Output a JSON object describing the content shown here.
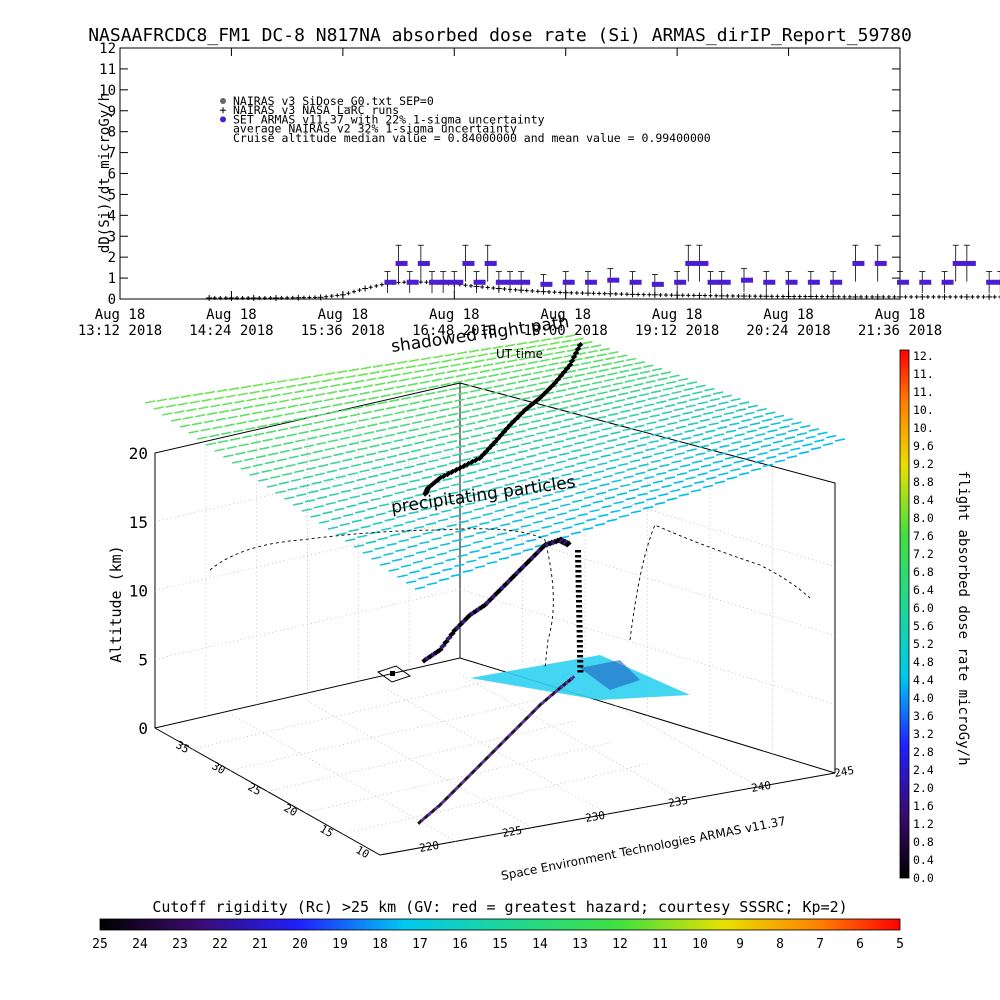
{
  "page": {
    "title": "NASAAFRCDC8_FM1 DC-8    N817NA absorbed dose rate (Si) ARMAS_dirIP_Report_59780",
    "credit": "Space Environment Technologies ARMAS v11.37"
  },
  "chart_data": [
    {
      "type": "scatter",
      "ylabel": "dD(Si)/dt microGy/h",
      "ylim": [
        0,
        12
      ],
      "y_ticks": [
        "0",
        "1",
        "2",
        "3",
        "4",
        "5",
        "6",
        "7",
        "8",
        "9",
        "10",
        "11",
        "12"
      ],
      "x_ticks": [
        {
          "line1": "Aug 18",
          "line2": "13:12 2018"
        },
        {
          "line1": "Aug 18",
          "line2": "14:24 2018"
        },
        {
          "line1": "Aug 18",
          "line2": "15:36 2018"
        },
        {
          "line1": "Aug 18",
          "line2": "16:48 2018"
        },
        {
          "line1": "Aug 18",
          "line2": "18:00 2018"
        },
        {
          "line1": "Aug 18",
          "line2": "19:12 2018"
        },
        {
          "line1": "Aug 18",
          "line2": "20:24 2018"
        },
        {
          "line1": "Aug 18",
          "line2": "21:36 2018"
        }
      ],
      "legend": [
        "NAIRAS v3 SiDose_G0.txt SEP=0",
        "NAIRAS v3 NASA LaRC runs",
        "SET ARMAS v11.37 with 22% 1-sigma uncertainty",
        "average NAIRAS v2 32% 1-sigma uncertainty",
        "Cruise altitude median value = 0.84000000 and mean value = 0.99400000"
      ],
      "series": [
        {
          "name": "NAIRAS v3 NASA LaRC runs",
          "color": "#000000",
          "x": [
            0.8,
            1.0,
            1.2,
            1.4,
            1.6,
            1.8,
            2.0,
            2.2,
            2.4,
            2.6,
            2.8,
            3.0,
            3.2,
            3.4,
            3.6,
            3.8,
            4.0,
            4.2,
            4.4,
            4.6,
            4.8,
            5.0,
            5.2,
            5.4,
            5.6,
            5.8,
            6.0,
            6.2,
            6.4,
            6.6,
            6.8,
            7.0,
            7.2,
            7.4,
            7.6,
            7.8,
            8.0
          ],
          "y": [
            0.05,
            0.05,
            0.05,
            0.05,
            0.06,
            0.08,
            0.2,
            0.5,
            0.75,
            0.82,
            0.8,
            0.72,
            0.6,
            0.5,
            0.42,
            0.35,
            0.3,
            0.28,
            0.25,
            0.22,
            0.2,
            0.18,
            0.17,
            0.15,
            0.14,
            0.13,
            0.12,
            0.12,
            0.11,
            0.1,
            0.1,
            0.1,
            0.1,
            0.1,
            0.1,
            0.1,
            0.1
          ]
        },
        {
          "name": "SET ARMAS v11.37",
          "color": "#4b1fd1",
          "x": [
            2.4,
            2.5,
            2.6,
            2.7,
            2.8,
            2.9,
            3.0,
            3.1,
            3.2,
            3.3,
            3.4,
            3.5,
            3.6,
            3.8,
            4.0,
            4.2,
            4.4,
            4.6,
            4.8,
            5.0,
            5.1,
            5.2,
            5.3,
            5.4,
            5.6,
            5.8,
            6.0,
            6.2,
            6.4,
            6.6,
            6.8,
            7.0,
            7.2,
            7.4,
            7.5,
            7.6,
            7.8,
            7.9
          ],
          "y": [
            0.8,
            1.7,
            0.8,
            1.7,
            0.8,
            0.8,
            0.8,
            1.7,
            0.8,
            1.7,
            0.8,
            0.8,
            0.8,
            0.7,
            0.8,
            0.8,
            0.9,
            0.8,
            0.7,
            0.8,
            1.7,
            1.7,
            0.8,
            0.8,
            0.9,
            0.8,
            0.8,
            0.8,
            0.8,
            1.7,
            1.7,
            0.8,
            0.8,
            0.8,
            1.7,
            1.7,
            0.8,
            0.8
          ]
        }
      ]
    },
    {
      "type": "scatter",
      "subtype": "3d-flight-track",
      "zlabel": "Altitude (km)",
      "zlim": [
        0,
        20
      ],
      "z_ticks": [
        "0",
        "5",
        "10",
        "15",
        "20"
      ],
      "x_ticks": [
        "220",
        "225",
        "230",
        "235",
        "240",
        "245"
      ],
      "y_ticks": [
        "10",
        "15",
        "20",
        "25",
        "30",
        "35"
      ],
      "annotations": [
        "shadowed flight path",
        "UT time",
        "precipitating particles"
      ],
      "colorbar": {
        "label": "flight absorbed dose rate microGy/h",
        "ticks": [
          "12.",
          "11.",
          "11.",
          "10.",
          "10.",
          "9.6",
          "9.2",
          "8.8",
          "8.4",
          "8.0",
          "7.6",
          "7.2",
          "6.8",
          "6.4",
          "6.0",
          "5.6",
          "5.2",
          "4.8",
          "4.4",
          "4.0",
          "3.6",
          "3.2",
          "2.8",
          "2.4",
          "2.0",
          "1.6",
          "1.2",
          "0.8",
          "0.4",
          "0.0"
        ]
      }
    },
    {
      "type": "heatmap",
      "subtype": "colorbar",
      "title": "Cutoff rigidity (Rc) >25 km (GV: red = greatest hazard; courtesy SSSRC; Kp=2)",
      "ticks": [
        "25",
        "24",
        "23",
        "22",
        "21",
        "20",
        "19",
        "18",
        "17",
        "16",
        "15",
        "14",
        "13",
        "12",
        "11",
        "10",
        "9",
        "8",
        "7",
        "6",
        "5"
      ]
    }
  ]
}
